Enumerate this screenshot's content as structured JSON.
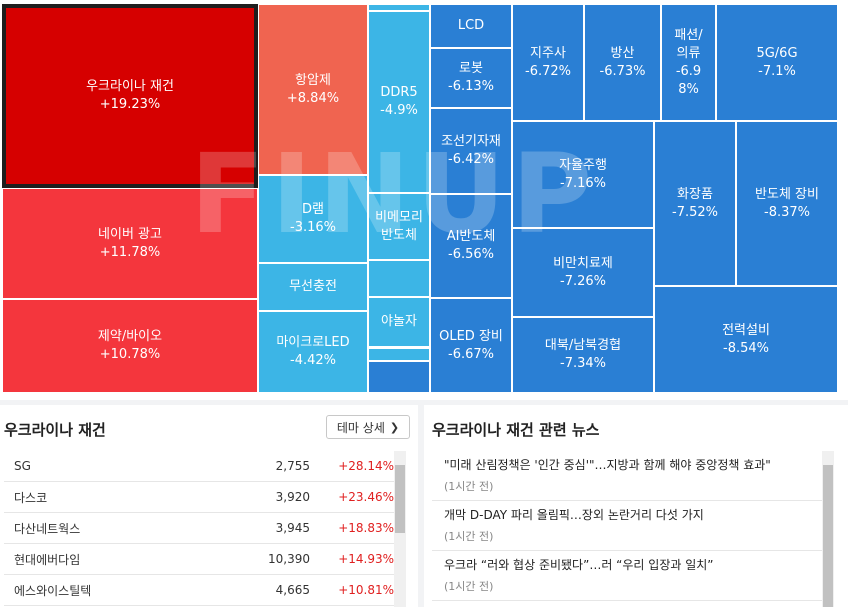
{
  "treemap": {
    "watermark": "FINUP",
    "tiles": [
      {
        "name": "우크라이나 재건",
        "change": "+19.23%",
        "color": "#d60000"
      },
      {
        "name": "네이버 광고",
        "change": "+11.78%",
        "color": "#f4363d"
      },
      {
        "name": "제약/바이오",
        "change": "+10.78%",
        "color": "#f4363d"
      },
      {
        "name": "항암제",
        "change": "+8.84%",
        "color": "#f06450"
      },
      {
        "name": "D램",
        "change": "-3.16%",
        "color": "#3cb5e6"
      },
      {
        "name": "무선충전",
        "change": "",
        "color": "#3cb5e6"
      },
      {
        "name": "마이크로LED",
        "change": "-4.42%",
        "color": "#3cb5e6"
      },
      {
        "name": "DDR5",
        "change": "-4.9%",
        "color": "#3cb5e6"
      },
      {
        "name": "비메모리\n반도체",
        "change": "",
        "color": "#3cb5e6"
      },
      {
        "name": "",
        "change": "",
        "color": "#3cb5e6"
      },
      {
        "name": "야놀자",
        "change": "",
        "color": "#3cb5e6"
      },
      {
        "name": "",
        "change": "",
        "color": "#3cb5e6"
      },
      {
        "name": "",
        "change": "",
        "color": "#3cb5e6"
      },
      {
        "name": "",
        "change": "",
        "color": "#3cb5e6"
      },
      {
        "name": "",
        "change": "",
        "color": "#2a7fd4"
      },
      {
        "name": "LCD",
        "change": "",
        "color": "#2a7fd4"
      },
      {
        "name": "로봇",
        "change": "-6.13%",
        "color": "#2a7fd4"
      },
      {
        "name": "조선기자재",
        "change": "-6.42%",
        "color": "#2a7fd4"
      },
      {
        "name": "AI반도체",
        "change": "-6.56%",
        "color": "#2a7fd4"
      },
      {
        "name": "OLED 장비",
        "change": "-6.67%",
        "color": "#2a7fd4"
      },
      {
        "name": "지주사",
        "change": "-6.72%",
        "color": "#2a7fd4"
      },
      {
        "name": "방산",
        "change": "-6.73%",
        "color": "#2a7fd4"
      },
      {
        "name": "패션/\n의류",
        "change": "-6.9\n8%",
        "color": "#2a7fd4"
      },
      {
        "name": "5G/6G",
        "change": "-7.1%",
        "color": "#2a7fd4"
      },
      {
        "name": "자율주행",
        "change": "-7.16%",
        "color": "#2a7fd4"
      },
      {
        "name": "비만치료제",
        "change": "-7.26%",
        "color": "#2a7fd4"
      },
      {
        "name": "대북/남북경협",
        "change": "-7.34%",
        "color": "#2a7fd4"
      },
      {
        "name": "화장품",
        "change": "-7.52%",
        "color": "#2a7fd4"
      },
      {
        "name": "반도체 장비",
        "change": "-8.37%",
        "color": "#2a7fd4"
      },
      {
        "name": "전력설비",
        "change": "-8.54%",
        "color": "#2a7fd4"
      }
    ]
  },
  "stocks_panel": {
    "title": "우크라이나 재건",
    "detail_button": "테마 상세",
    "rows": [
      {
        "name": "SG",
        "price": "2,755",
        "change": "+28.14%"
      },
      {
        "name": "다스코",
        "price": "3,920",
        "change": "+23.46%"
      },
      {
        "name": "다산네트웍스",
        "price": "3,945",
        "change": "+18.83%"
      },
      {
        "name": "현대에버다임",
        "price": "10,390",
        "change": "+14.93%"
      },
      {
        "name": "에스와이스틸텍",
        "price": "4,665",
        "change": "+10.81%"
      }
    ]
  },
  "news_panel": {
    "title": "우크라이나 재건 관련 뉴스",
    "items": [
      {
        "title": "\"미래 산림정책은 '인간 중심'\"…지방과 함께 해야 중앙정책 효과\"",
        "time": "(1시간 전)"
      },
      {
        "title": "개막 D-DAY 파리 올림픽…장외 논란거리 다섯 가지",
        "time": "(1시간 전)"
      },
      {
        "title": "우크라 “러와 협상 준비됐다”…러 “우리 입장과 일치”",
        "time": "(1시간 전)"
      }
    ]
  }
}
